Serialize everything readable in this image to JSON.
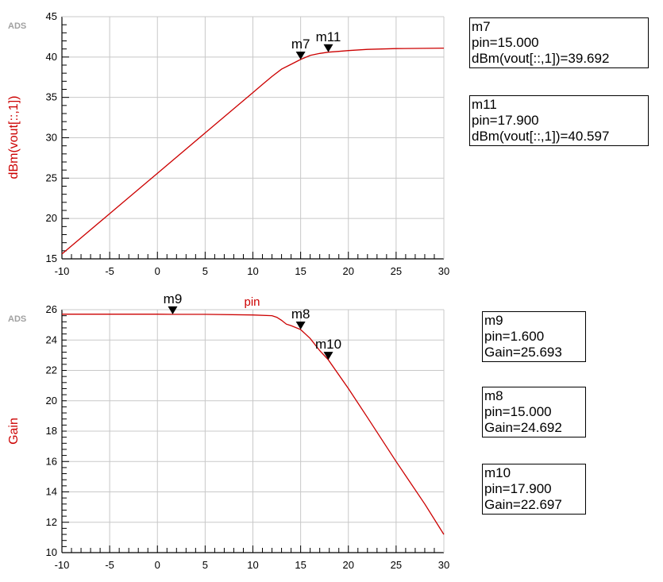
{
  "chart_data": [
    {
      "type": "line",
      "watermark": "ADS",
      "xlabel": "",
      "ylabel": "dBm(vout[::,1])",
      "xlim": [
        -10,
        30
      ],
      "ylim": [
        15,
        45
      ],
      "x_ticks": [
        -10,
        -5,
        0,
        5,
        10,
        15,
        20,
        25,
        30
      ],
      "y_ticks": [
        15,
        20,
        25,
        30,
        35,
        40,
        45
      ],
      "grid": true,
      "color": "#cc0000",
      "series": [
        {
          "x": [
            -10,
            -5,
            0,
            5,
            10,
            11,
            12,
            13,
            14,
            15,
            16,
            17,
            17.9,
            19,
            20,
            22,
            25,
            30
          ],
          "y": [
            15.6,
            20.6,
            25.6,
            30.6,
            35.6,
            36.6,
            37.6,
            38.5,
            39.1,
            39.7,
            40.2,
            40.45,
            40.6,
            40.7,
            40.8,
            40.95,
            41.05,
            41.1
          ]
        }
      ],
      "markers": [
        {
          "name": "m7",
          "x": 15.0,
          "y": 39.692
        },
        {
          "name": "m11",
          "x": 17.9,
          "y": 40.597
        }
      ]
    },
    {
      "type": "line",
      "watermark": "ADS",
      "xlabel": "pin",
      "ylabel": "Gain",
      "xlim": [
        -10,
        30
      ],
      "ylim": [
        10,
        26
      ],
      "x_ticks": [
        -10,
        -5,
        0,
        5,
        10,
        15,
        20,
        25,
        30
      ],
      "y_ticks": [
        10,
        12,
        14,
        16,
        18,
        20,
        22,
        24,
        26
      ],
      "grid": true,
      "color": "#cc0000",
      "series": [
        {
          "x": [
            -10,
            -5,
            0,
            1.6,
            5,
            10,
            12,
            12.5,
            13,
            13.5,
            14,
            15,
            16,
            17,
            17.9,
            20,
            22,
            25,
            28,
            30
          ],
          "y": [
            25.7,
            25.7,
            25.7,
            25.693,
            25.69,
            25.65,
            25.6,
            25.5,
            25.3,
            25.05,
            24.95,
            24.692,
            24.1,
            23.3,
            22.697,
            20.8,
            18.9,
            16.0,
            13.2,
            11.2
          ]
        }
      ],
      "markers": [
        {
          "name": "m9",
          "x": 1.6,
          "y": 25.693
        },
        {
          "name": "m8",
          "x": 15.0,
          "y": 24.692
        },
        {
          "name": "m10",
          "x": 17.9,
          "y": 22.697
        }
      ]
    }
  ],
  "marker_boxes": {
    "m7": {
      "line1": "m7",
      "line2": "pin=15.000",
      "line3": "dBm(vout[::,1])=39.692"
    },
    "m11": {
      "line1": "m11",
      "line2": "pin=17.900",
      "line3": "dBm(vout[::,1])=40.597"
    },
    "m9": {
      "line1": "m9",
      "line2": "pin=1.600",
      "line3": "Gain=25.693"
    },
    "m8": {
      "line1": "m8",
      "line2": "pin=15.000",
      "line3": "Gain=24.692"
    },
    "m10": {
      "line1": "m10",
      "line2": "pin=17.900",
      "line3": "Gain=22.697"
    }
  }
}
